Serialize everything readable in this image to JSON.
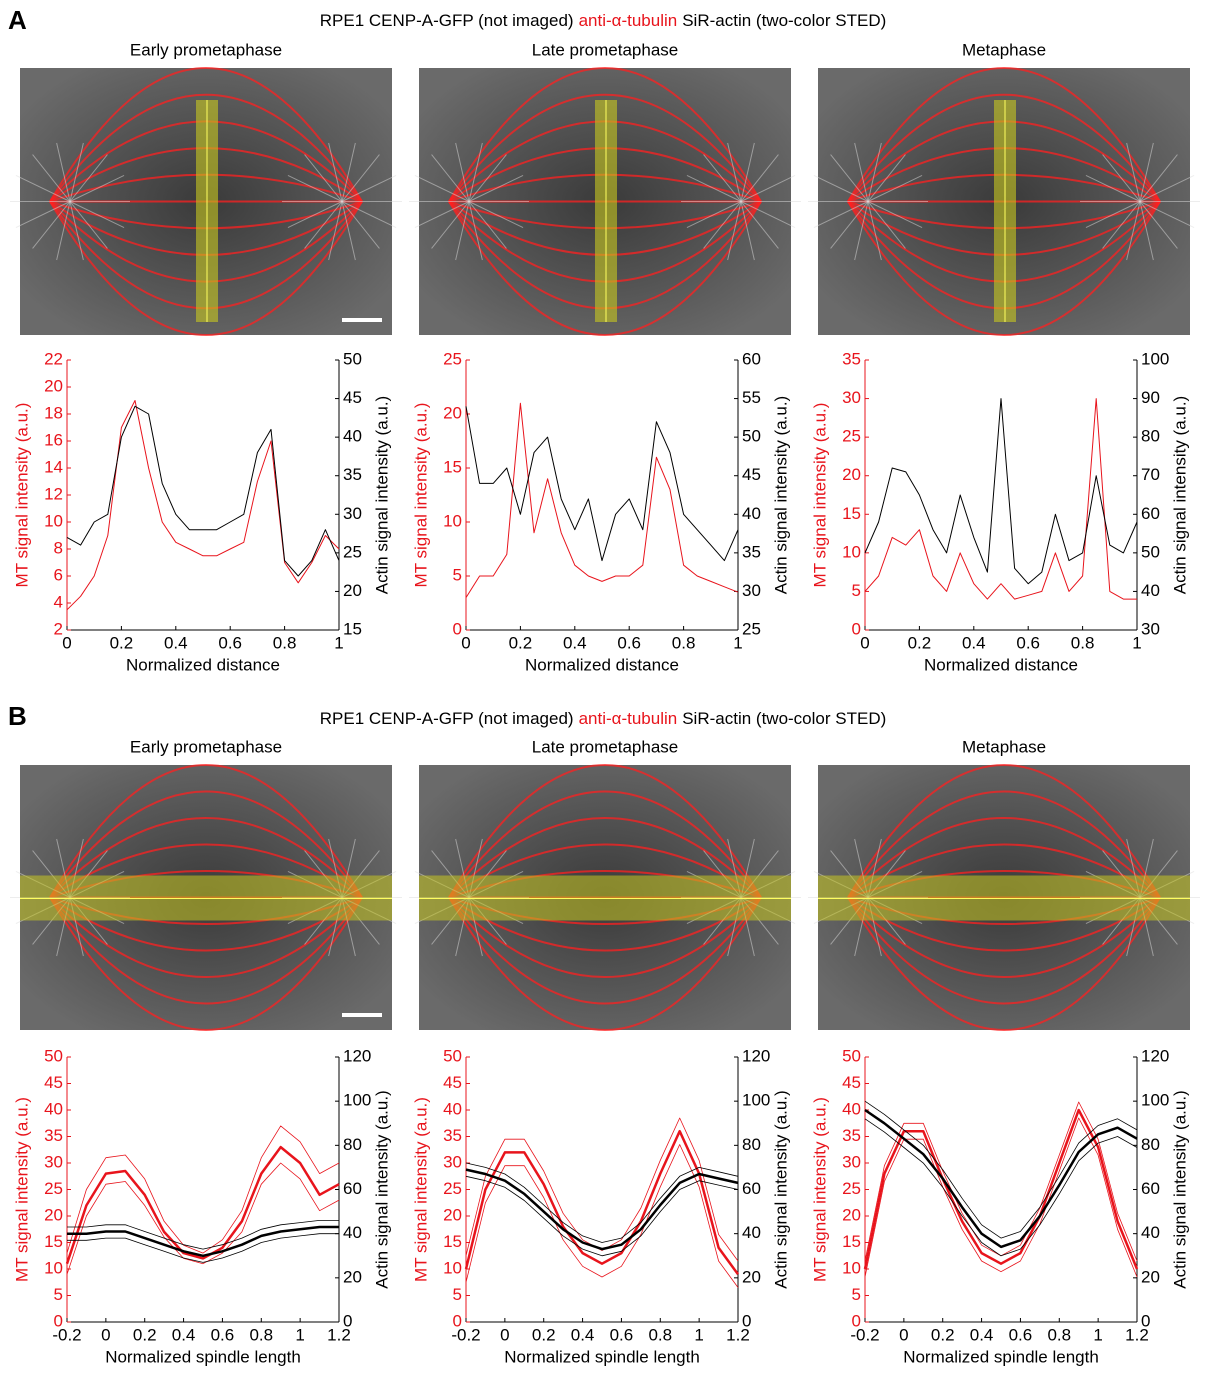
{
  "panels": [
    {
      "label": "A",
      "title": [
        "RPE1 CENP-A-GFP (not imaged)",
        "anti-α-tubulin",
        "SiR-actin (two-color STED)"
      ]
    },
    {
      "label": "B",
      "title": [
        "RPE1 CENP-A-GFP (not imaged)",
        "anti-α-tubulin",
        "SiR-actin (two-color STED)"
      ]
    }
  ],
  "chart_data": [
    {
      "type": "line",
      "title": "Early prometaphase",
      "xlabel": "Normalized distance",
      "ylabel": "MT signal intensity (a.u.)",
      "y2label": "Actin signal intensity (a.u.)",
      "ycolor": "#e8141c",
      "y2color": "#000000",
      "x": [
        0,
        0.05,
        0.1,
        0.15,
        0.2,
        0.25,
        0.3,
        0.35,
        0.4,
        0.45,
        0.5,
        0.55,
        0.6,
        0.65,
        0.7,
        0.75,
        0.8,
        0.85,
        0.9,
        0.95,
        1
      ],
      "xlim": [
        0,
        1
      ],
      "xticks": [
        0,
        0.2,
        0.4,
        0.6,
        0.8,
        1
      ],
      "ylim": [
        2,
        22
      ],
      "yticks": [
        2,
        4,
        6,
        8,
        10,
        12,
        14,
        16,
        18,
        20,
        22
      ],
      "y2lim": [
        15,
        50
      ],
      "y2ticks": [
        15,
        20,
        25,
        30,
        35,
        40,
        45,
        50
      ],
      "series": [
        {
          "color": "#e8141c",
          "line_width": 1,
          "values": [
            3.5,
            4.5,
            6,
            9,
            17,
            19,
            14,
            10,
            8.5,
            8,
            7.5,
            7.5,
            8,
            8.5,
            13,
            16,
            7,
            5.5,
            7,
            9,
            8
          ]
        },
        {
          "color": "#000000",
          "line_width": 1,
          "axis": "y2",
          "values": [
            27,
            26,
            29,
            30,
            40,
            44,
            43,
            34,
            30,
            28,
            28,
            28,
            29,
            30,
            38,
            41,
            24,
            22,
            24,
            28,
            24
          ]
        }
      ]
    },
    {
      "type": "line",
      "title": "Late prometaphase",
      "xlabel": "Normalized distance",
      "ylabel": "MT signal intensity (a.u.)",
      "y2label": "Actin signal intensity (a.u.)",
      "ycolor": "#e8141c",
      "y2color": "#000000",
      "x": [
        0,
        0.05,
        0.1,
        0.15,
        0.2,
        0.25,
        0.3,
        0.35,
        0.4,
        0.45,
        0.5,
        0.55,
        0.6,
        0.65,
        0.7,
        0.75,
        0.8,
        0.85,
        0.9,
        0.95,
        1
      ],
      "xlim": [
        0,
        1
      ],
      "xticks": [
        0,
        0.2,
        0.4,
        0.6,
        0.8,
        1
      ],
      "ylim": [
        0,
        25
      ],
      "yticks": [
        0,
        5,
        10,
        15,
        20,
        25
      ],
      "y2lim": [
        25,
        60
      ],
      "y2ticks": [
        25,
        30,
        35,
        40,
        45,
        50,
        55,
        60
      ],
      "series": [
        {
          "color": "#e8141c",
          "line_width": 1,
          "values": [
            3,
            5,
            5,
            7,
            21,
            9,
            14,
            9,
            6,
            5,
            4.5,
            5,
            5,
            6,
            16,
            13,
            6,
            5,
            4.5,
            4,
            3.5
          ]
        },
        {
          "color": "#000000",
          "line_width": 1,
          "axis": "y2",
          "values": [
            54,
            44,
            44,
            46,
            40,
            48,
            50,
            42,
            38,
            42,
            34,
            40,
            42,
            38,
            52,
            48,
            40,
            38,
            36,
            34,
            38
          ]
        }
      ]
    },
    {
      "type": "line",
      "title": "Metaphase",
      "xlabel": "Normalized distance",
      "ylabel": "MT signal intensity (a.u.)",
      "y2label": "Actin signal intensity (a.u.)",
      "ycolor": "#e8141c",
      "y2color": "#000000",
      "x": [
        0,
        0.05,
        0.1,
        0.15,
        0.2,
        0.25,
        0.3,
        0.35,
        0.4,
        0.45,
        0.5,
        0.55,
        0.6,
        0.65,
        0.7,
        0.75,
        0.8,
        0.85,
        0.9,
        0.95,
        1
      ],
      "xlim": [
        0,
        1
      ],
      "xticks": [
        0,
        0.2,
        0.4,
        0.6,
        0.8,
        1
      ],
      "ylim": [
        0,
        35
      ],
      "yticks": [
        0,
        5,
        10,
        15,
        20,
        25,
        30,
        35
      ],
      "y2lim": [
        30,
        100
      ],
      "y2ticks": [
        30,
        40,
        50,
        60,
        70,
        80,
        90,
        100
      ],
      "series": [
        {
          "color": "#e8141c",
          "line_width": 1,
          "values": [
            5,
            7,
            12,
            11,
            13,
            7,
            5,
            10,
            6,
            4,
            6,
            4,
            4.5,
            5,
            10,
            5,
            7,
            30,
            5,
            4,
            4
          ]
        },
        {
          "color": "#000000",
          "line_width": 1,
          "axis": "y2",
          "values": [
            50,
            58,
            72,
            71,
            65,
            56,
            50,
            65,
            54,
            45,
            90,
            46,
            42,
            45,
            60,
            48,
            50,
            70,
            52,
            50,
            58
          ]
        }
      ]
    },
    {
      "type": "line",
      "title": "Early prometaphase",
      "xlabel": "Normalized spindle length",
      "ylabel": "MT signal intensity (a.u.)",
      "y2label": "Actin signal intensity (a.u.)",
      "ycolor": "#e8141c",
      "y2color": "#000000",
      "x": [
        -0.2,
        -0.1,
        0,
        0.1,
        0.2,
        0.3,
        0.4,
        0.5,
        0.6,
        0.7,
        0.8,
        0.9,
        1,
        1.1,
        1.2
      ],
      "xlim": [
        -0.2,
        1.2
      ],
      "xticks": [
        -0.2,
        0,
        0.2,
        0.4,
        0.6,
        0.8,
        1,
        1.2
      ],
      "ylim": [
        0,
        50
      ],
      "yticks": [
        0,
        5,
        10,
        15,
        20,
        25,
        30,
        35,
        40,
        45,
        50
      ],
      "y2lim": [
        0,
        120
      ],
      "y2ticks": [
        0,
        20,
        40,
        60,
        80,
        100,
        120
      ],
      "series": [
        {
          "color": "#e8141c",
          "line_width": 0.8,
          "values": [
            13,
            25,
            31,
            31.5,
            27,
            19,
            14.5,
            13,
            15.5,
            21,
            31,
            37,
            34,
            28,
            30
          ]
        },
        {
          "color": "#e8141c",
          "line_width": 0.8,
          "values": [
            9,
            20,
            26,
            26.5,
            22,
            16,
            12,
            11,
            13,
            17,
            26,
            30,
            27,
            21,
            23
          ]
        },
        {
          "color": "#e8141c",
          "line_width": 2.5,
          "values": [
            11,
            22,
            28,
            28.5,
            24,
            17,
            13,
            12,
            14,
            19,
            28,
            33,
            30,
            24,
            26
          ]
        },
        {
          "color": "#000000",
          "line_width": 0.8,
          "axis": "y2",
          "values": [
            43,
            43,
            44,
            44,
            41,
            38,
            35,
            33,
            35,
            38,
            42,
            44,
            45,
            46,
            46
          ]
        },
        {
          "color": "#000000",
          "line_width": 0.8,
          "axis": "y2",
          "values": [
            37,
            37,
            38,
            38,
            35,
            32,
            29,
            27,
            29,
            32,
            36,
            38,
            39,
            40,
            40
          ]
        },
        {
          "color": "#000000",
          "line_width": 2.5,
          "axis": "y2",
          "values": [
            40,
            40,
            41,
            41,
            38,
            35,
            32,
            30,
            32,
            35,
            39,
            41,
            42,
            43,
            43
          ]
        }
      ]
    },
    {
      "type": "line",
      "title": "Late prometaphase",
      "xlabel": "Normalized spindle length",
      "ylabel": "MT signal intensity (a.u.)",
      "y2label": "Actin signal intensity (a.u.)",
      "ycolor": "#e8141c",
      "y2color": "#000000",
      "x": [
        -0.2,
        -0.1,
        0,
        0.1,
        0.2,
        0.3,
        0.4,
        0.5,
        0.6,
        0.7,
        0.8,
        0.9,
        1,
        1.1,
        1.2
      ],
      "xlim": [
        -0.2,
        1.2
      ],
      "xticks": [
        -0.2,
        0,
        0.2,
        0.4,
        0.6,
        0.8,
        1,
        1.2
      ],
      "ylim": [
        0,
        50
      ],
      "yticks": [
        0,
        5,
        10,
        15,
        20,
        25,
        30,
        35,
        40,
        45,
        50
      ],
      "y2lim": [
        0,
        120
      ],
      "y2ticks": [
        0,
        20,
        40,
        60,
        80,
        100,
        120
      ],
      "series": [
        {
          "color": "#e8141c",
          "line_width": 0.8,
          "values": [
            12.5,
            27.5,
            34.5,
            34.5,
            28.5,
            20.5,
            15.5,
            13.5,
            15.5,
            21.5,
            30.5,
            38.5,
            30.5,
            16.5,
            11.5
          ]
        },
        {
          "color": "#e8141c",
          "line_width": 0.8,
          "values": [
            7.5,
            22.5,
            29.5,
            29.5,
            23.5,
            15.5,
            10.5,
            8.5,
            10.5,
            16.5,
            25.5,
            33.5,
            25.5,
            11.5,
            6.5
          ]
        },
        {
          "color": "#e8141c",
          "line_width": 2.5,
          "values": [
            10,
            25,
            32,
            32,
            26,
            18,
            13,
            11,
            13,
            19,
            28,
            36,
            28,
            14,
            9
          ]
        },
        {
          "color": "#000000",
          "line_width": 0.8,
          "axis": "y2",
          "values": [
            72,
            70,
            67,
            61,
            53,
            45,
            39,
            36,
            38,
            45,
            56,
            66,
            70,
            68,
            66
          ]
        },
        {
          "color": "#000000",
          "line_width": 0.8,
          "axis": "y2",
          "values": [
            66,
            64,
            61,
            55,
            47,
            39,
            33,
            30,
            32,
            39,
            50,
            60,
            64,
            62,
            60
          ]
        },
        {
          "color": "#000000",
          "line_width": 2.5,
          "axis": "y2",
          "values": [
            69,
            67,
            64,
            58,
            50,
            42,
            36,
            33,
            35,
            42,
            53,
            63,
            67,
            65,
            63
          ]
        }
      ]
    },
    {
      "type": "line",
      "title": "Metaphase",
      "xlabel": "Normalized spindle length",
      "ylabel": "MT signal intensity (a.u.)",
      "y2label": "Actin signal intensity (a.u.)",
      "ycolor": "#e8141c",
      "y2color": "#000000",
      "x": [
        -0.2,
        -0.1,
        0,
        0.1,
        0.2,
        0.3,
        0.4,
        0.5,
        0.6,
        0.7,
        0.8,
        0.9,
        1,
        1.1,
        1.2
      ],
      "xlim": [
        -0.2,
        1.2
      ],
      "xticks": [
        -0.2,
        0,
        0.2,
        0.4,
        0.6,
        0.8,
        1,
        1.2
      ],
      "ylim": [
        0,
        50
      ],
      "yticks": [
        0,
        5,
        10,
        15,
        20,
        25,
        30,
        35,
        40,
        45,
        50
      ],
      "y2lim": [
        0,
        120
      ],
      "y2ticks": [
        0,
        20,
        40,
        60,
        80,
        100,
        120
      ],
      "series": [
        {
          "color": "#e8141c",
          "line_width": 0.8,
          "values": [
            11.5,
            29.5,
            37.5,
            37.5,
            28.5,
            20.5,
            14.5,
            12.5,
            14.5,
            21.5,
            31.5,
            41.5,
            34.5,
            20.5,
            11.5
          ]
        },
        {
          "color": "#e8141c",
          "line_width": 0.8,
          "values": [
            8.5,
            26.5,
            34.5,
            34.5,
            25.5,
            17.5,
            11.5,
            9.5,
            11.5,
            18.5,
            28.5,
            38.5,
            31.5,
            17.5,
            8.5
          ]
        },
        {
          "color": "#e8141c",
          "line_width": 2.5,
          "values": [
            10,
            28,
            36,
            36,
            27,
            19,
            13,
            11,
            13,
            20,
            30,
            40,
            33,
            19,
            10
          ]
        },
        {
          "color": "#000000",
          "line_width": 0.8,
          "axis": "y2",
          "values": [
            100,
            94,
            87,
            80,
            69,
            56,
            44,
            38,
            41,
            52,
            66,
            81,
            89,
            92,
            87
          ]
        },
        {
          "color": "#000000",
          "line_width": 0.8,
          "axis": "y2",
          "values": [
            92,
            86,
            79,
            72,
            61,
            48,
            36,
            30,
            33,
            44,
            58,
            73,
            81,
            84,
            79
          ]
        },
        {
          "color": "#000000",
          "line_width": 2.5,
          "axis": "y2",
          "values": [
            96,
            90,
            83,
            76,
            65,
            52,
            40,
            34,
            37,
            48,
            62,
            77,
            85,
            88,
            83
          ]
        }
      ]
    }
  ]
}
